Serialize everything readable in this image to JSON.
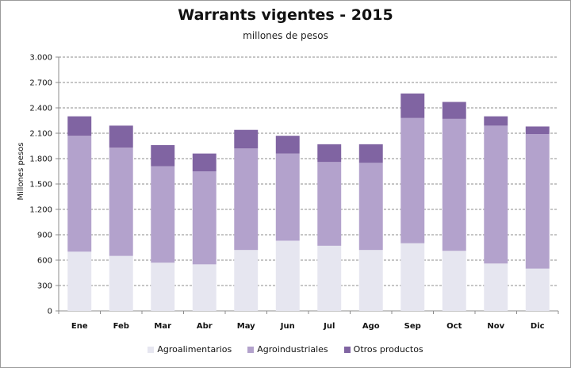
{
  "chart_data": {
    "type": "bar",
    "stacked": true,
    "title": "Warrants vigentes - 2015",
    "subtitle": "millones de pesos",
    "ylabel": "Millones pesos",
    "xlabel": "",
    "ylim": [
      0,
      3000
    ],
    "yticks": [
      0,
      300,
      600,
      900,
      1200,
      1500,
      1800,
      2100,
      2400,
      2700,
      3000
    ],
    "ytick_labels": [
      "0",
      "300",
      "600",
      "900",
      "1.200",
      "1.500",
      "1.800",
      "2.100",
      "2.400",
      "2.700",
      "3.000"
    ],
    "grid": "horizontal dashed",
    "legend_position": "bottom",
    "categories": [
      "Ene",
      "Feb",
      "Mar",
      "Abr",
      "May",
      "Jun",
      "Jul",
      "Ago",
      "Sep",
      "Oct",
      "Nov",
      "Dic"
    ],
    "series": [
      {
        "name": "Agroalimentarios",
        "color": "#e6e6f0",
        "values": [
          700,
          650,
          570,
          550,
          720,
          830,
          770,
          720,
          800,
          710,
          560,
          500
        ]
      },
      {
        "name": "Agroindustriales",
        "color": "#b3a2cc",
        "values": [
          1370,
          1280,
          1140,
          1100,
          1200,
          1030,
          990,
          1030,
          1480,
          1560,
          1630,
          1590
        ]
      },
      {
        "name": "Otros productos",
        "color": "#8064a2",
        "values": [
          230,
          260,
          250,
          210,
          220,
          210,
          210,
          220,
          290,
          200,
          110,
          90
        ]
      }
    ]
  }
}
